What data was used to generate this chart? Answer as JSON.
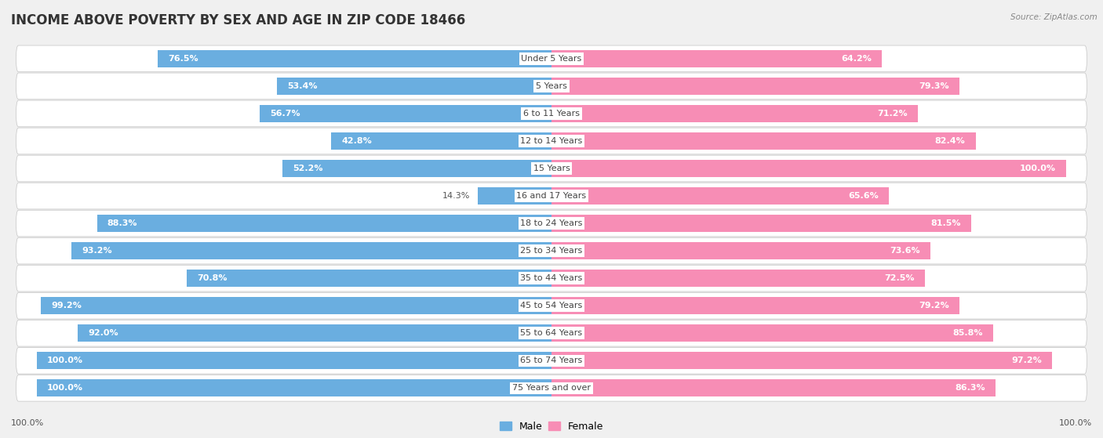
{
  "title": "INCOME ABOVE POVERTY BY SEX AND AGE IN ZIP CODE 18466",
  "source": "Source: ZipAtlas.com",
  "categories": [
    "Under 5 Years",
    "5 Years",
    "6 to 11 Years",
    "12 to 14 Years",
    "15 Years",
    "16 and 17 Years",
    "18 to 24 Years",
    "25 to 34 Years",
    "35 to 44 Years",
    "45 to 54 Years",
    "55 to 64 Years",
    "65 to 74 Years",
    "75 Years and over"
  ],
  "male_values": [
    76.5,
    53.4,
    56.7,
    42.8,
    52.2,
    14.3,
    88.3,
    93.2,
    70.8,
    99.2,
    92.0,
    100.0,
    100.0
  ],
  "female_values": [
    64.2,
    79.3,
    71.2,
    82.4,
    100.0,
    65.6,
    81.5,
    73.6,
    72.5,
    79.2,
    85.8,
    97.2,
    86.3
  ],
  "male_color": "#6aaee0",
  "female_color": "#f78db5",
  "male_color_light": "#b8d9f2",
  "female_color_light": "#fbbfd8",
  "male_label": "Male",
  "female_label": "Female",
  "background_color": "#f0f0f0",
  "bar_background_color": "#ffffff",
  "title_fontsize": 12,
  "label_fontsize": 8,
  "value_fontsize": 8,
  "legend_fontsize": 9,
  "bottom_label": "100.0%"
}
